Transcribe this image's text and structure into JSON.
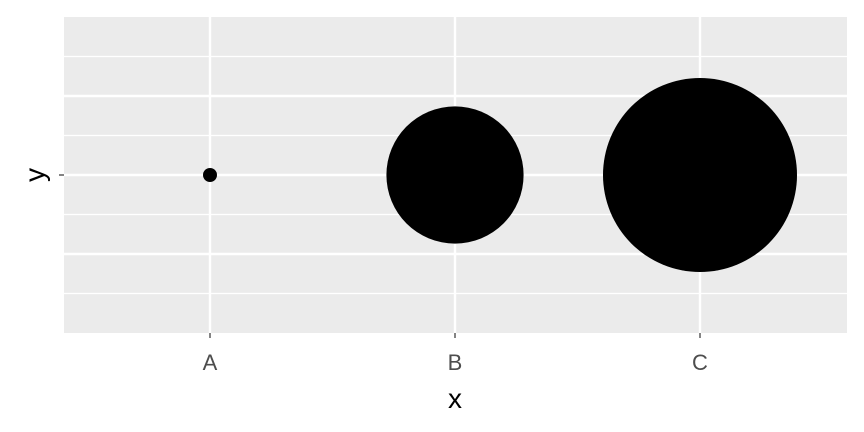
{
  "chart_data": {
    "type": "scatter",
    "title": "",
    "xlabel": "x",
    "ylabel": "y",
    "x_categories": [
      "A",
      "B",
      "C"
    ],
    "y_ticks_labeled": false,
    "grid": true,
    "legend": "none",
    "panel_color": "#ebebeb",
    "grid_color": "#ffffff",
    "point_color": "#000000",
    "ylim": [
      0,
      1
    ],
    "points": [
      {
        "x": "A",
        "y": 0.5,
        "size": 1
      },
      {
        "x": "B",
        "y": 0.5,
        "size": 100
      },
      {
        "x": "C",
        "y": 0.5,
        "size": 200
      }
    ]
  }
}
